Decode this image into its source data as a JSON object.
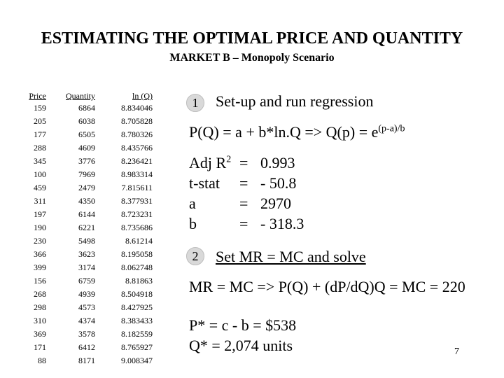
{
  "title": "ESTIMATING THE OPTIMAL PRICE AND QUANTITY",
  "subtitle": "MARKET B – Monopoly Scenario",
  "table": {
    "headers": {
      "price": "Price",
      "quantity": "Quantity",
      "lnq": "ln (Q)"
    },
    "rows": [
      [
        "159",
        "6864",
        "8.834046"
      ],
      [
        "205",
        "6038",
        "8.705828"
      ],
      [
        "177",
        "6505",
        "8.780326"
      ],
      [
        "288",
        "4609",
        "8.435766"
      ],
      [
        "345",
        "3776",
        "8.236421"
      ],
      [
        "100",
        "7969",
        "8.983314"
      ],
      [
        "459",
        "2479",
        "7.815611"
      ],
      [
        "311",
        "4350",
        "8.377931"
      ],
      [
        "197",
        "6144",
        "8.723231"
      ],
      [
        "190",
        "6221",
        "8.735686"
      ],
      [
        "230",
        "5498",
        "8.61214"
      ],
      [
        "366",
        "3623",
        "8.195058"
      ],
      [
        "399",
        "3174",
        "8.062748"
      ],
      [
        "156",
        "6759",
        "8.81863"
      ],
      [
        "268",
        "4939",
        "8.504918"
      ],
      [
        "298",
        "4573",
        "8.427925"
      ],
      [
        "310",
        "4374",
        "8.383433"
      ],
      [
        "369",
        "3578",
        "8.182559"
      ],
      [
        "171",
        "6412",
        "8.765927"
      ],
      [
        "88",
        "8171",
        "9.008347"
      ]
    ]
  },
  "step1": {
    "number": "1",
    "title": "Set-up and run regression",
    "formula_main": "P(Q) = a + b*ln.Q  =>   Q(p) = e",
    "formula_exp": "(p-a)/b",
    "stats": [
      {
        "label": "Adj R",
        "label_sup": "2",
        "eq": "=",
        "value": "0.993"
      },
      {
        "label": "t-stat",
        "label_sup": "",
        "eq": "=",
        "value": "- 50.8"
      },
      {
        "label": "a",
        "label_sup": "",
        "eq": "=",
        "value": "2970"
      },
      {
        "label": "b",
        "label_sup": "",
        "eq": "=",
        "value": "- 318.3"
      }
    ]
  },
  "step2": {
    "number": "2",
    "title": "Set MR = MC and solve",
    "formula": "MR = MC  => P(Q) + (dP/dQ)Q = MC = 220"
  },
  "result": {
    "price": "P* = c - b = $538",
    "quantity": "Q* = 2,074 units"
  },
  "page_number": "7"
}
